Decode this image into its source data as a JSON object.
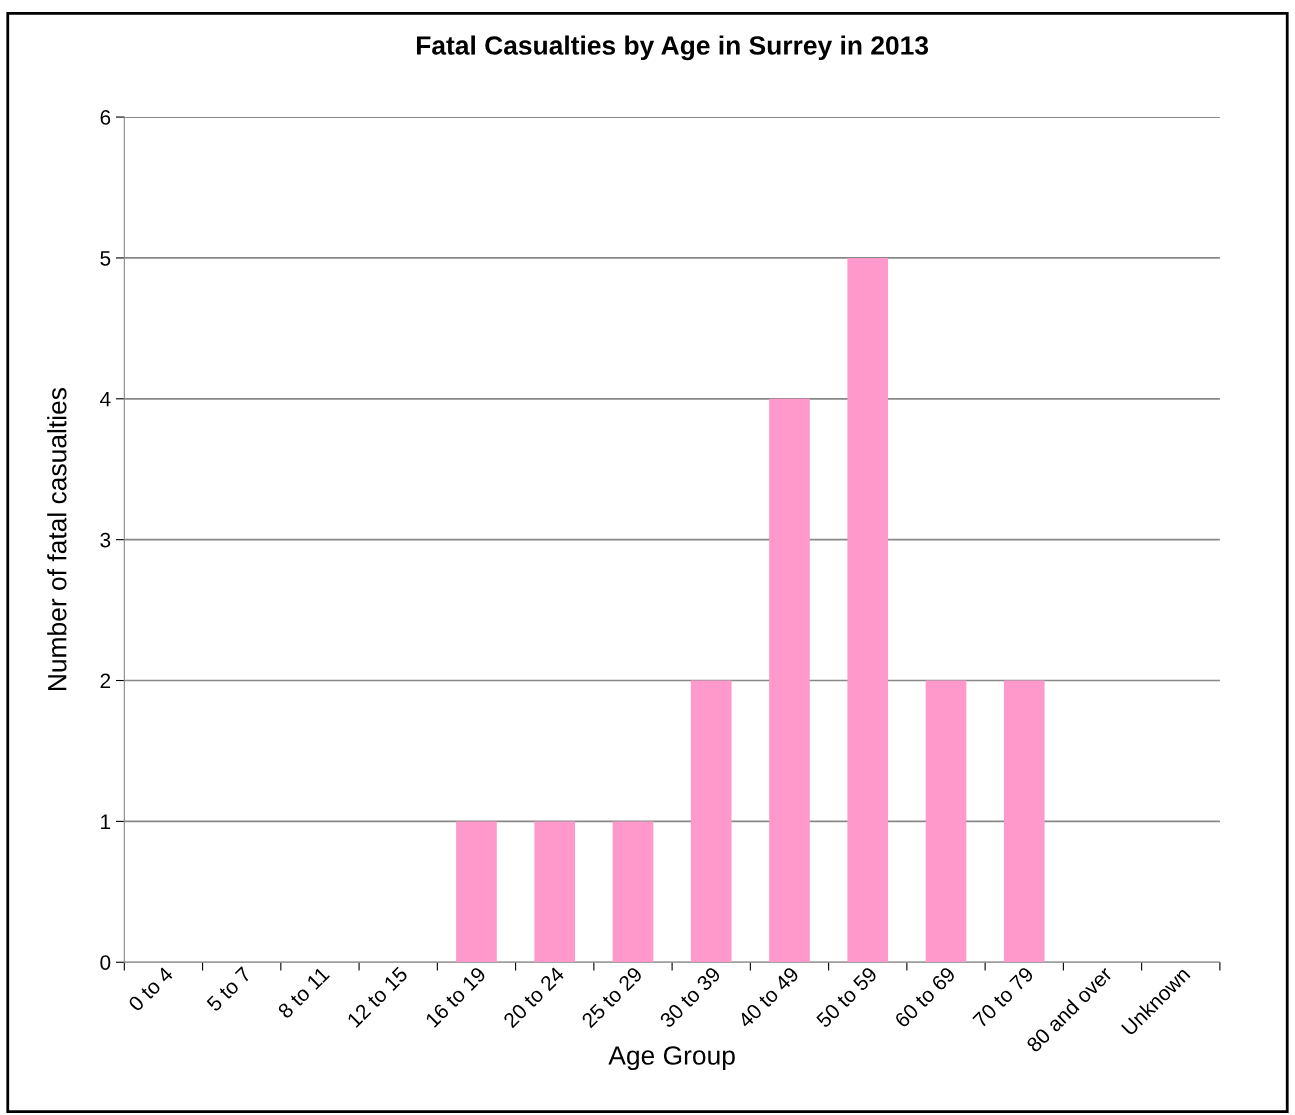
{
  "chart_data": {
    "type": "bar",
    "title": "Fatal Casualties by Age in Surrey in 2013",
    "xlabel": "Age Group",
    "ylabel": "Number of fatal casualties",
    "categories": [
      "0 to 4",
      "5 to 7",
      "8 to 11",
      "12 to 15",
      "16 to 19",
      "20 to 24",
      "25 to 29",
      "30 to 39",
      "40 to 49",
      "50 to 59",
      "60 to 69",
      "70 to 79",
      "80 and over",
      "Unknown"
    ],
    "values": [
      0,
      0,
      0,
      0,
      1,
      1,
      1,
      2,
      4,
      5,
      2,
      2,
      0,
      0
    ],
    "color": "#ff99cc",
    "ylim": [
      0,
      6
    ],
    "yticks": [
      0,
      1,
      2,
      3,
      4,
      5,
      6
    ],
    "grid": "y"
  }
}
